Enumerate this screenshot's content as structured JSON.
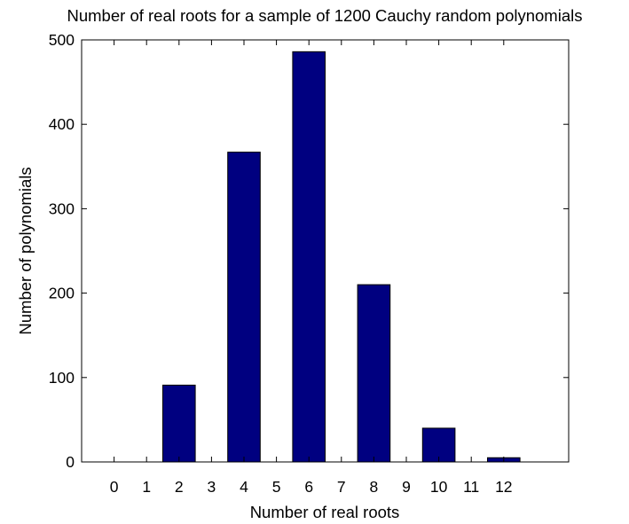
{
  "chart_data": {
    "type": "bar",
    "title": "Number of real roots for a sample of 1200 Cauchy random polynomials",
    "xlabel": "Number of real roots",
    "ylabel": "Number of polynomials",
    "categories": [
      "0",
      "1",
      "2",
      "3",
      "4",
      "5",
      "6",
      "7",
      "8",
      "9",
      "10",
      "11",
      "12"
    ],
    "values": [
      0,
      0,
      91,
      0,
      367,
      0,
      486,
      0,
      210,
      0,
      40,
      0,
      5
    ],
    "xlim": [
      -1,
      14
    ],
    "ylim": [
      0,
      500
    ],
    "yticks": [
      0,
      100,
      200,
      300,
      400,
      500
    ],
    "grid": false,
    "bar_color": "#000080",
    "axis_color": "#000000",
    "background": "#ffffff"
  }
}
